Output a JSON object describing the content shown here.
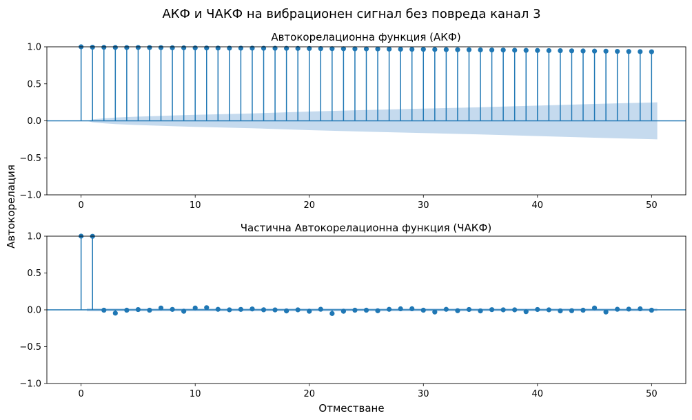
{
  "suptitle": "АКФ и ЧАКФ на вибрационен сигнал без повреда канал 3",
  "ylabel": "Автокорелация",
  "xlabel": "Отместване",
  "colors": {
    "stem": "#1f77b4",
    "confidence": "#c5daee",
    "baseline": "#1f77b4"
  },
  "chart_data": [
    {
      "type": "stem",
      "title": "Автокорелационна функция (АКФ)",
      "xlim": [
        -3,
        53
      ],
      "ylim": [
        -1,
        1
      ],
      "xticks": [
        0,
        10,
        20,
        30,
        40,
        50
      ],
      "yticks": [
        -1.0,
        -0.5,
        0.0,
        0.5,
        1.0
      ],
      "ytick_labels": [
        "−1.0",
        "−0.5",
        "0.0",
        "0.5",
        "1.0"
      ],
      "xtick_labels": [
        "0",
        "10",
        "20",
        "30",
        "40",
        "50"
      ],
      "lags": [
        0,
        1,
        2,
        3,
        4,
        5,
        6,
        7,
        8,
        9,
        10,
        11,
        12,
        13,
        14,
        15,
        16,
        17,
        18,
        19,
        20,
        21,
        22,
        23,
        24,
        25,
        26,
        27,
        28,
        29,
        30,
        31,
        32,
        33,
        34,
        35,
        36,
        37,
        38,
        39,
        40,
        41,
        42,
        43,
        44,
        45,
        46,
        47,
        48,
        49,
        50
      ],
      "values": [
        1.0,
        0.995,
        0.993,
        0.991,
        0.99,
        0.991,
        0.99,
        0.989,
        0.987,
        0.986,
        0.985,
        0.984,
        0.983,
        0.982,
        0.982,
        0.982,
        0.981,
        0.981,
        0.979,
        0.978,
        0.977,
        0.976,
        0.975,
        0.974,
        0.973,
        0.972,
        0.971,
        0.969,
        0.968,
        0.967,
        0.966,
        0.964,
        0.962,
        0.961,
        0.96,
        0.958,
        0.957,
        0.956,
        0.954,
        0.952,
        0.951,
        0.949,
        0.948,
        0.946,
        0.944,
        0.942,
        0.941,
        0.939,
        0.937,
        0.935,
        0.933
      ],
      "confidence_band": {
        "lags": [
          0.5,
          1,
          2,
          3,
          5,
          8,
          10,
          15,
          20,
          25,
          30,
          35,
          40,
          45,
          50,
          50.5
        ],
        "upper": [
          0.0,
          0.02,
          0.034,
          0.044,
          0.057,
          0.072,
          0.081,
          0.1,
          0.126,
          0.146,
          0.165,
          0.184,
          0.206,
          0.228,
          0.248,
          0.25
        ]
      }
    },
    {
      "type": "stem",
      "title": "Частична Автокорелационна функция (ЧАКФ)",
      "xlim": [
        -3,
        53
      ],
      "ylim": [
        -1,
        1
      ],
      "xticks": [
        0,
        10,
        20,
        30,
        40,
        50
      ],
      "yticks": [
        -1.0,
        -0.5,
        0.0,
        0.5,
        1.0
      ],
      "ytick_labels": [
        "−1.0",
        "−0.5",
        "0.0",
        "0.5",
        "1.0"
      ],
      "xtick_labels": [
        "0",
        "10",
        "20",
        "30",
        "40",
        "50"
      ],
      "lags": [
        0,
        1,
        2,
        3,
        4,
        5,
        6,
        7,
        8,
        9,
        10,
        11,
        12,
        13,
        14,
        15,
        16,
        17,
        18,
        19,
        20,
        21,
        22,
        23,
        24,
        25,
        26,
        27,
        28,
        29,
        30,
        31,
        32,
        33,
        34,
        35,
        36,
        37,
        38,
        39,
        40,
        41,
        42,
        43,
        44,
        45,
        46,
        47,
        48,
        49,
        50
      ],
      "values": [
        1.0,
        0.998,
        -0.005,
        -0.045,
        -0.005,
        0.004,
        -0.005,
        0.025,
        0.006,
        -0.02,
        0.025,
        0.03,
        0.007,
        0.0,
        0.006,
        0.012,
        0.001,
        -0.001,
        -0.015,
        0.0,
        -0.02,
        0.008,
        -0.05,
        -0.02,
        -0.005,
        -0.005,
        -0.013,
        0.007,
        0.014,
        0.015,
        -0.005,
        -0.03,
        0.007,
        -0.012,
        0.005,
        -0.015,
        0.003,
        0.0,
        0.0,
        -0.025,
        0.005,
        0.0,
        -0.015,
        -0.012,
        -0.005,
        0.025,
        -0.03,
        0.008,
        0.01,
        0.014,
        -0.005
      ],
      "confidence_band": {
        "lags": [
          0.5,
          50.5
        ],
        "upper": [
          0.02,
          0.02
        ]
      }
    }
  ]
}
